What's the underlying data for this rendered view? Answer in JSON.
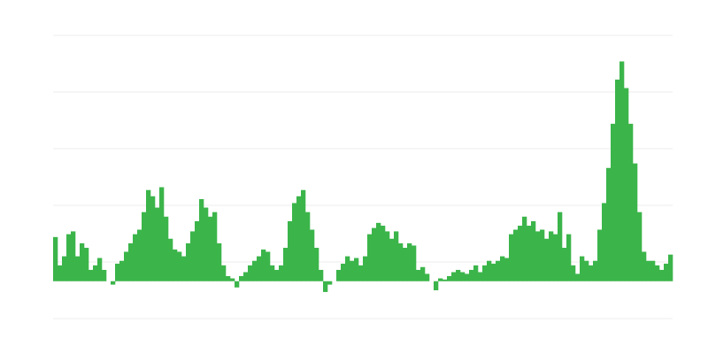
{
  "chart_data": {
    "type": "bar",
    "values": [
      0.78,
      0.28,
      0.44,
      0.83,
      0.88,
      0.44,
      0.67,
      0.59,
      0.2,
      0.28,
      0.41,
      0.2,
      0,
      -0.06,
      0.31,
      0.36,
      0.52,
      0.67,
      0.83,
      0.91,
      1.22,
      1.61,
      1.5,
      1.3,
      1.66,
      1.14,
      0.75,
      0.56,
      0.52,
      0.44,
      0.67,
      0.88,
      1.06,
      1.45,
      1.3,
      1.14,
      1.22,
      0.67,
      0.28,
      0.09,
      0.05,
      -0.11,
      0.09,
      0.16,
      0.28,
      0.36,
      0.44,
      0.56,
      0.52,
      0.28,
      0.2,
      0.28,
      0.59,
      1.06,
      1.38,
      1.5,
      1.61,
      1.22,
      0.91,
      0.59,
      0.2,
      -0.19,
      -0.06,
      0,
      0.2,
      0.31,
      0.44,
      0.36,
      0.41,
      0.28,
      0.44,
      0.83,
      0.94,
      1.03,
      0.98,
      0.88,
      0.75,
      0.88,
      0.67,
      0.59,
      0.67,
      0.63,
      0.2,
      0.25,
      0.13,
      0,
      -0.16,
      0.05,
      0.03,
      0.09,
      0.16,
      0.2,
      0.16,
      0.13,
      0.2,
      0.28,
      0.16,
      0.28,
      0.36,
      0.31,
      0.36,
      0.44,
      0.41,
      0.83,
      0.91,
      0.98,
      1.14,
      0.98,
      1.06,
      0.88,
      0.91,
      0.75,
      0.88,
      0.83,
      1.22,
      0.59,
      0.83,
      0.28,
      0.13,
      0.44,
      0.36,
      0.28,
      0.36,
      0.91,
      1.38,
      2.0,
      2.78,
      3.56,
      3.88,
      3.41,
      2.78,
      2.08,
      1.22,
      0.52,
      0.36,
      0.36,
      0.28,
      0.2,
      0.31,
      0.47
    ],
    "color": "#3bb54a",
    "ylim": [
      -0.66,
      4.34
    ],
    "yticks": [
      -0.66,
      0.34,
      1.34,
      2.34,
      3.34,
      4.34
    ],
    "grid": true
  }
}
